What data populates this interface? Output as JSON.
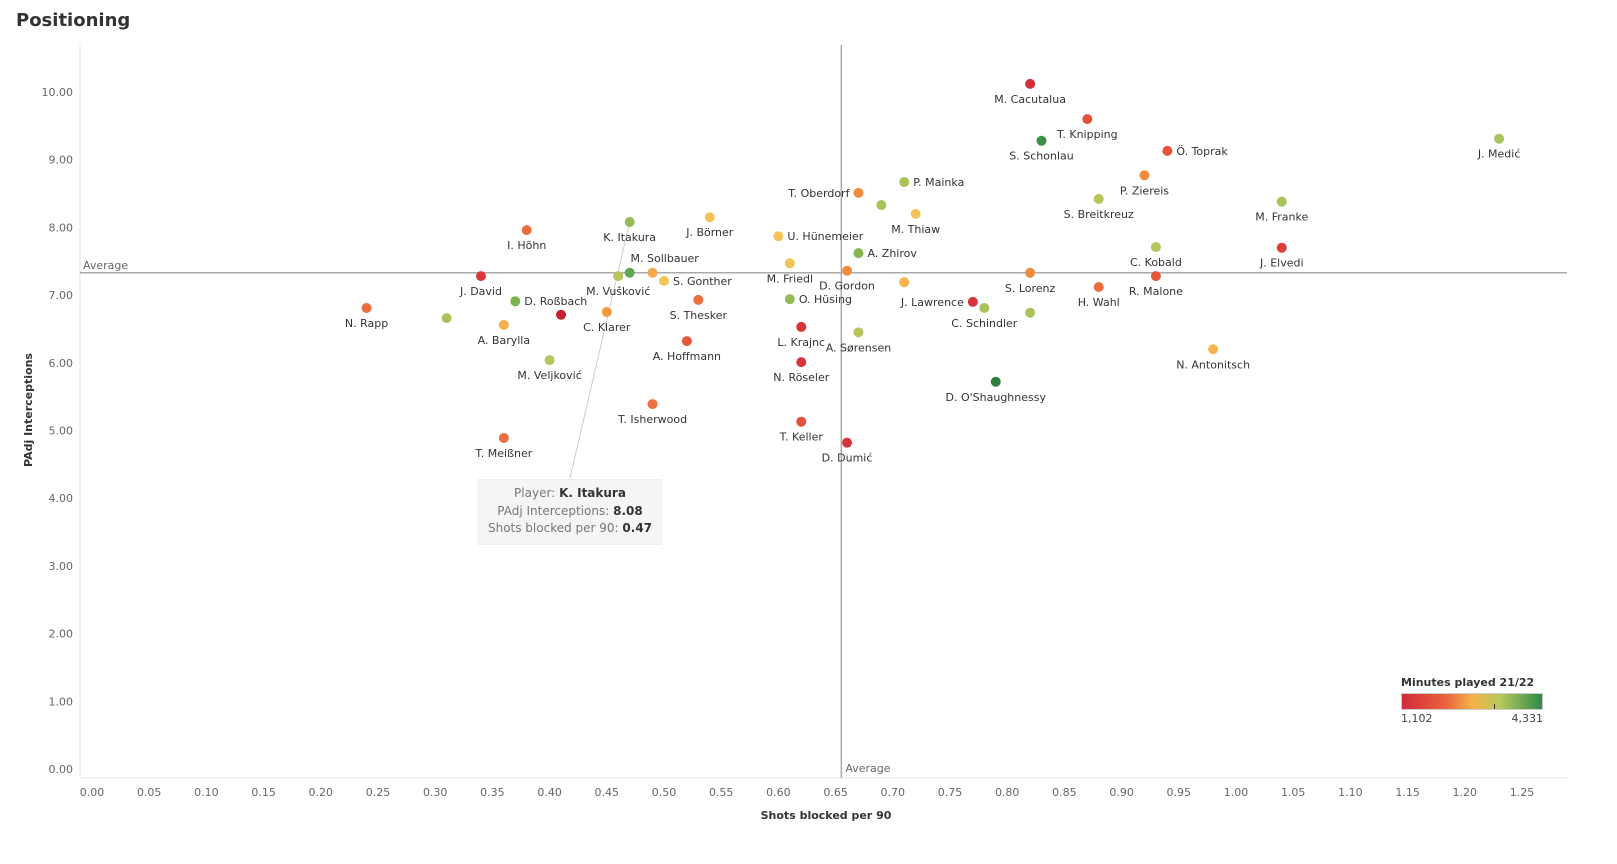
{
  "title": "Positioning",
  "chart_data": {
    "type": "scatter",
    "title": "Positioning",
    "xlabel": "Shots blocked per 90",
    "ylabel": "PAdj Interceptions",
    "xlim": [
      0,
      1.27
    ],
    "ylim": [
      0,
      10.5
    ],
    "xticks": [
      "0.00",
      "0.05",
      "0.10",
      "0.15",
      "0.20",
      "0.25",
      "0.30",
      "0.35",
      "0.40",
      "0.45",
      "0.50",
      "0.55",
      "0.60",
      "0.65",
      "0.70",
      "0.75",
      "0.80",
      "0.85",
      "0.90",
      "0.95",
      "1.00",
      "1.05",
      "1.10",
      "1.15",
      "1.20",
      "1.25"
    ],
    "yticks": [
      "0.00",
      "1.00",
      "2.00",
      "3.00",
      "4.00",
      "5.00",
      "6.00",
      "7.00",
      "8.00",
      "9.00",
      "10.00"
    ],
    "reference_lines": {
      "x_average": 0.655,
      "y_average": 7.33,
      "x_label": "Average",
      "y_label": "Average"
    },
    "color_legend": {
      "title": "Minutes played 21/22",
      "min": "1,102",
      "max": "4,331"
    },
    "points": [
      {
        "name": "M. Cacutalua",
        "x": 0.82,
        "y": 10.12,
        "color": "#d22f3b",
        "pos": "below"
      },
      {
        "name": "T. Knipping",
        "x": 0.87,
        "y": 9.6,
        "color": "#e4523d",
        "pos": "below"
      },
      {
        "name": "S. Schonlau",
        "x": 0.83,
        "y": 9.28,
        "color": "#3a8f49",
        "pos": "below"
      },
      {
        "name": "Ö. Toprak",
        "x": 0.94,
        "y": 9.13,
        "color": "#e4523d",
        "pos": "right"
      },
      {
        "name": "J. Medić",
        "x": 1.23,
        "y": 9.31,
        "color": "#a9c25a",
        "pos": "below"
      },
      {
        "name": "P. Ziereis",
        "x": 0.92,
        "y": 8.77,
        "color": "#f08c3e",
        "pos": "below"
      },
      {
        "name": "S. Breitkreuz",
        "x": 0.88,
        "y": 8.42,
        "color": "#b9c55c",
        "pos": "below"
      },
      {
        "name": "M. Franke",
        "x": 1.04,
        "y": 8.38,
        "color": "#a9c25a",
        "pos": "below"
      },
      {
        "name": "C. Kobald",
        "x": 0.93,
        "y": 7.71,
        "color": "#b9c55c",
        "pos": "below"
      },
      {
        "name": "J. Elvedi",
        "x": 1.04,
        "y": 7.7,
        "color": "#db3d3d",
        "pos": "below"
      },
      {
        "name": "R. Malone",
        "x": 0.93,
        "y": 7.28,
        "color": "#e4573d",
        "pos": "below"
      },
      {
        "name": "S. Lorenz",
        "x": 0.82,
        "y": 7.33,
        "color": "#f08c3e",
        "pos": "below"
      },
      {
        "name": "H. Wahl",
        "x": 0.88,
        "y": 7.12,
        "color": "#ec6e40",
        "pos": "below"
      },
      {
        "name": "N. Antonitsch",
        "x": 0.98,
        "y": 6.2,
        "color": "#f6b54f",
        "pos": "below"
      },
      {
        "name": "",
        "x": 0.82,
        "y": 6.74,
        "color": "#a9c25a",
        "pos": "below"
      },
      {
        "name": "C. Schindler",
        "x": 0.78,
        "y": 6.81,
        "color": "#a9c25a",
        "pos": "below"
      },
      {
        "name": "J. Lawrence",
        "x": 0.77,
        "y": 6.9,
        "color": "#d8343b",
        "pos": "left"
      },
      {
        "name": "D. O'Shaughnessy",
        "x": 0.79,
        "y": 5.72,
        "color": "#2e7f40",
        "pos": "below"
      },
      {
        "name": "P. Mainka",
        "x": 0.71,
        "y": 8.67,
        "color": "#a9c25a",
        "pos": "right"
      },
      {
        "name": "",
        "x": 0.69,
        "y": 8.33,
        "color": "#a9c25a",
        "pos": "below"
      },
      {
        "name": "M. Thiaw",
        "x": 0.72,
        "y": 8.2,
        "color": "#f3c45a",
        "pos": "below"
      },
      {
        "name": "T. Oberdorf",
        "x": 0.67,
        "y": 8.51,
        "color": "#f08c3e",
        "pos": "left"
      },
      {
        "name": "A. Zhirov",
        "x": 0.67,
        "y": 7.62,
        "color": "#86b552",
        "pos": "right"
      },
      {
        "name": "D. Gordon",
        "x": 0.66,
        "y": 7.36,
        "color": "#f08c3e",
        "pos": "below"
      },
      {
        "name": "",
        "x": 0.71,
        "y": 7.19,
        "color": "#f6b54f",
        "pos": "below"
      },
      {
        "name": "U. Hünemeier",
        "x": 0.6,
        "y": 7.87,
        "color": "#f3c45a",
        "pos": "right"
      },
      {
        "name": "M. Friedl",
        "x": 0.61,
        "y": 7.47,
        "color": "#f3c45a",
        "pos": "below"
      },
      {
        "name": "O. Hüsing",
        "x": 0.61,
        "y": 6.94,
        "color": "#94bb55",
        "pos": "right"
      },
      {
        "name": "L. Krajnc",
        "x": 0.62,
        "y": 6.53,
        "color": "#d8343b",
        "pos": "below"
      },
      {
        "name": "A. Sørensen",
        "x": 0.67,
        "y": 6.45,
        "color": "#b9c55c",
        "pos": "below"
      },
      {
        "name": "N. Röseler",
        "x": 0.62,
        "y": 6.01,
        "color": "#d8343b",
        "pos": "below"
      },
      {
        "name": "T. Keller",
        "x": 0.62,
        "y": 5.13,
        "color": "#e4523d",
        "pos": "below"
      },
      {
        "name": "D. Dumić",
        "x": 0.66,
        "y": 4.82,
        "color": "#d8343b",
        "pos": "below"
      },
      {
        "name": "J. Börner",
        "x": 0.54,
        "y": 8.15,
        "color": "#f3c45a",
        "pos": "below"
      },
      {
        "name": "K. Itakura",
        "x": 0.47,
        "y": 8.08,
        "color": "#94bb55",
        "pos": "below"
      },
      {
        "name": "M. Sollbauer",
        "x": 0.47,
        "y": 7.33,
        "color": "#5ea74c",
        "pos": "above"
      },
      {
        "name": "M. Vušković",
        "x": 0.46,
        "y": 7.28,
        "color": "#b9c55c",
        "pos": "below"
      },
      {
        "name": "",
        "x": 0.49,
        "y": 7.33,
        "color": "#f6a84a",
        "pos": "below"
      },
      {
        "name": "S. Gonther",
        "x": 0.5,
        "y": 7.21,
        "color": "#f3c45a",
        "pos": "right"
      },
      {
        "name": "S. Thesker",
        "x": 0.53,
        "y": 6.93,
        "color": "#ec7040",
        "pos": "below"
      },
      {
        "name": "C. Klarer",
        "x": 0.45,
        "y": 6.75,
        "color": "#f39a3f",
        "pos": "below"
      },
      {
        "name": "A. Hoffmann",
        "x": 0.52,
        "y": 6.32,
        "color": "#e4573d",
        "pos": "below"
      },
      {
        "name": "T. Isherwood",
        "x": 0.49,
        "y": 5.39,
        "color": "#ec7040",
        "pos": "below"
      },
      {
        "name": "I. Höhn",
        "x": 0.38,
        "y": 7.96,
        "color": "#ec6e40",
        "pos": "below"
      },
      {
        "name": "J. David",
        "x": 0.34,
        "y": 7.28,
        "color": "#d8393b",
        "pos": "below"
      },
      {
        "name": "D. Roßbach",
        "x": 0.37,
        "y": 6.91,
        "color": "#7bb353",
        "pos": "right"
      },
      {
        "name": "",
        "x": 0.41,
        "y": 6.71,
        "color": "#c8202f",
        "pos": "below"
      },
      {
        "name": "A. Barylla",
        "x": 0.36,
        "y": 6.56,
        "color": "#f6b04b",
        "pos": "below"
      },
      {
        "name": "M. Veljković",
        "x": 0.4,
        "y": 6.04,
        "color": "#b9c55c",
        "pos": "below"
      },
      {
        "name": "N. Rapp",
        "x": 0.24,
        "y": 6.81,
        "color": "#ec6e40",
        "pos": "below"
      },
      {
        "name": "",
        "x": 0.31,
        "y": 6.66,
        "color": "#a9c25a",
        "pos": "below"
      },
      {
        "name": "T. Meißner",
        "x": 0.36,
        "y": 4.89,
        "color": "#ec6e40",
        "pos": "below"
      }
    ]
  },
  "tooltip": {
    "player_label": "Player:",
    "player": "K. Itakura",
    "y_label": "PAdj Interceptions:",
    "y_value": "8.08",
    "x_label": "Shots blocked per 90:",
    "x_value": "0.47"
  }
}
